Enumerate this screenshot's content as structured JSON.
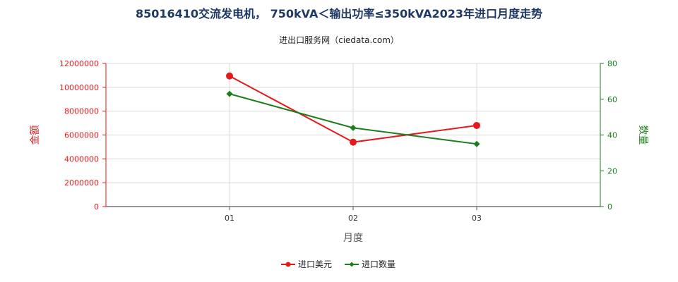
{
  "chart_data": {
    "type": "line",
    "title": "85016410交流发电机， 750kVA＜输出功率≤350kVA2023年进口月度走势",
    "subtitle": "进出口服务网（ciedata.com）",
    "xlabel": "月度",
    "ylabel_left": "金额",
    "ylabel_right": "数量",
    "categories": [
      "01",
      "02",
      "03"
    ],
    "y_left": {
      "range": [
        0,
        12000000
      ],
      "ticks": [
        "0",
        "2000000",
        "4000000",
        "6000000",
        "8000000",
        "10000000",
        "12000000"
      ],
      "color": "#e31a1c"
    },
    "y_right": {
      "range": [
        0,
        80
      ],
      "ticks": [
        "0",
        "20",
        "40",
        "60",
        "80"
      ],
      "color": "#1b7f1b"
    },
    "series": [
      {
        "name": "进口美元",
        "axis": "left",
        "color": "#e31a1c",
        "marker": "circle",
        "values": [
          10950000,
          5400000,
          6800000
        ]
      },
      {
        "name": "进口数量",
        "axis": "right",
        "color": "#1b7f1b",
        "marker": "diamond",
        "values": [
          63,
          44,
          35
        ]
      }
    ],
    "grid": true,
    "legend_position": "bottom"
  }
}
